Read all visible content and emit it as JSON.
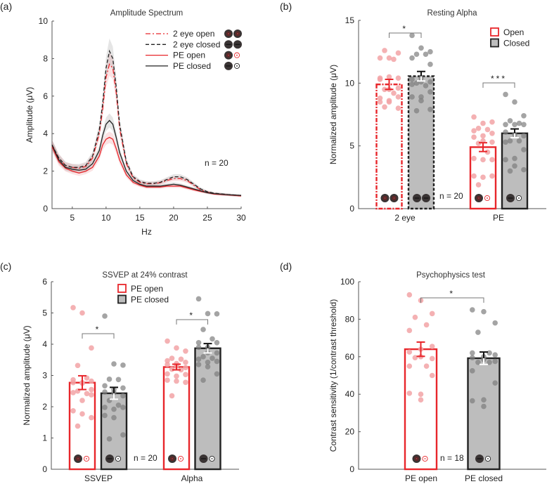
{
  "colors": {
    "open": "#e8262b",
    "open_dot": "#f2a3a6",
    "closed_fill": "#bdbdbd",
    "closed_dot": "#7d7d7d",
    "closed_edge": "#222222"
  },
  "chart_data": [
    {
      "panel": "(a)",
      "type": "line",
      "title": "Amplitude Spectrum",
      "xlabel": "Hz",
      "ylabel": "Amplitude (μV)",
      "xlim": [
        2,
        30
      ],
      "ylim": [
        0,
        10
      ],
      "xticks": [
        5,
        10,
        15,
        20,
        25,
        30
      ],
      "yticks": [
        0,
        2,
        4,
        6,
        8,
        10
      ],
      "annotation": "n = 20",
      "legend_position": "top-right",
      "x": [
        2,
        3,
        4,
        5,
        6,
        7,
        8,
        9,
        9.5,
        10,
        10.5,
        11,
        11.5,
        12,
        13,
        14,
        15,
        16,
        17,
        18,
        19,
        20,
        21,
        22,
        23,
        24,
        25,
        26,
        28,
        30
      ],
      "series": [
        {
          "name": "2 eye open",
          "style": "dash-dot",
          "color": "#e8262b",
          "icon": "both-eyes-open-icon",
          "values": [
            3.4,
            2.7,
            2.3,
            2.2,
            2.15,
            2.25,
            2.7,
            4.0,
            5.3,
            7.0,
            7.7,
            7.5,
            6.2,
            4.3,
            2.4,
            1.65,
            1.4,
            1.33,
            1.33,
            1.38,
            1.5,
            1.6,
            1.6,
            1.5,
            1.25,
            1.0,
            0.88,
            0.8,
            0.74,
            0.68
          ]
        },
        {
          "name": "2 eye closed",
          "style": "dashed",
          "color": "#222222",
          "icon": "both-eyes-closed-icon",
          "values": [
            3.4,
            2.7,
            2.3,
            2.2,
            2.2,
            2.3,
            2.8,
            4.2,
            5.6,
            7.5,
            8.4,
            8.0,
            6.5,
            4.5,
            2.5,
            1.7,
            1.45,
            1.35,
            1.35,
            1.4,
            1.55,
            1.7,
            1.7,
            1.55,
            1.3,
            1.05,
            0.9,
            0.82,
            0.75,
            0.7
          ]
        },
        {
          "name": "PE open",
          "style": "solid",
          "color": "#e8262b",
          "icon": "patched-eye-open-icon",
          "values": [
            3.3,
            2.5,
            2.15,
            2.0,
            1.9,
            2.0,
            2.2,
            2.8,
            3.4,
            3.7,
            3.8,
            3.7,
            3.2,
            2.6,
            1.8,
            1.4,
            1.25,
            1.15,
            1.15,
            1.15,
            1.2,
            1.2,
            1.2,
            1.1,
            1.0,
            0.92,
            0.85,
            0.78,
            0.73,
            0.68
          ]
        },
        {
          "name": "PE closed",
          "style": "solid",
          "color": "#222222",
          "icon": "patched-eye-closed-icon",
          "values": [
            3.4,
            2.6,
            2.2,
            2.1,
            2.05,
            2.1,
            2.4,
            3.1,
            3.9,
            4.5,
            4.7,
            4.5,
            3.8,
            3.0,
            2.0,
            1.5,
            1.3,
            1.2,
            1.2,
            1.2,
            1.25,
            1.3,
            1.25,
            1.15,
            1.05,
            0.95,
            0.85,
            0.8,
            0.74,
            0.7
          ]
        }
      ]
    },
    {
      "panel": "(b)",
      "type": "bar",
      "title": "Resting Alpha",
      "ylabel": "Normalized amplitude (μV)",
      "ylim": [
        0,
        15
      ],
      "yticks": [
        0,
        5,
        10,
        15
      ],
      "categories": [
        "2 eye",
        "PE"
      ],
      "legend": [
        "Open",
        "Closed"
      ],
      "legend_position": "top-right",
      "annotation": "n = 20",
      "bars": [
        {
          "group": "2 eye",
          "condition": "Open",
          "mean": 9.9,
          "sem": 0.4,
          "icon": "both-eyes-open-icon",
          "points": [
            12.0,
            12.0,
            12.4,
            12.6,
            11.9,
            10.3,
            10.4,
            10.5,
            10.4,
            9.5,
            9.6,
            9.5,
            9.2,
            8.8,
            8.9,
            8.5,
            8.5,
            8.6,
            8.0,
            8.1
          ]
        },
        {
          "group": "2 eye",
          "condition": "Closed",
          "mean": 10.55,
          "sem": 0.38,
          "icon": "both-eyes-closed-icon",
          "points": [
            13.8,
            12.8,
            12.5,
            12.3,
            12.3,
            12.0,
            11.5,
            10.4,
            10.3,
            10.1,
            10.1,
            10.0,
            9.8,
            9.9,
            9.3,
            8.9,
            8.9,
            8.6,
            7.9,
            7.8
          ]
        },
        {
          "group": "PE",
          "condition": "Open",
          "mean": 4.9,
          "sem": 0.35,
          "icon": "patched-eye-open-icon",
          "points": [
            7.3,
            6.8,
            6.9,
            6.4,
            6.3,
            6.2,
            6.0,
            5.8,
            5.7,
            5.4,
            5.3,
            5.2,
            4.5,
            4.0,
            3.9,
            3.9,
            2.6,
            2.5,
            2.6,
            1.9
          ]
        },
        {
          "group": "PE",
          "condition": "Closed",
          "mean": 6.0,
          "sem": 0.35,
          "icon": "patched-eye-closed-icon",
          "points": [
            9.1,
            8.5,
            7.4,
            7.0,
            6.8,
            6.7,
            6.7,
            6.7,
            6.1,
            5.9,
            5.8,
            5.4,
            5.4,
            5.3,
            4.7,
            4.0,
            3.9,
            3.4,
            3.1,
            3.0
          ]
        }
      ],
      "significance": [
        "*",
        "***"
      ]
    },
    {
      "panel": "(c)",
      "type": "bar",
      "title": "SSVEP at 24% contrast",
      "ylabel": "Normalized amplitude (μV)",
      "ylim": [
        0,
        6
      ],
      "yticks": [
        0,
        1,
        2,
        3,
        4,
        5,
        6
      ],
      "categories": [
        "SSVEP",
        "Alpha"
      ],
      "legend": [
        "PE open",
        "PE closed"
      ],
      "legend_position": "top-center",
      "annotation": "n = 20",
      "bars": [
        {
          "group": "SSVEP",
          "condition": "PE open",
          "mean": 2.77,
          "sem": 0.22,
          "icon": "patched-eye-open-icon",
          "points": [
            5.17,
            5.0,
            3.88,
            3.32,
            2.92,
            2.86,
            2.82,
            2.77,
            2.77,
            2.75,
            2.55,
            2.5,
            2.42,
            2.45,
            2.38,
            2.2,
            1.87,
            1.77,
            1.65,
            1.38
          ]
        },
        {
          "group": "SSVEP",
          "condition": "PE closed",
          "mean": 2.43,
          "sem": 0.19,
          "icon": "patched-eye-closed-icon",
          "points": [
            4.9,
            3.37,
            3.33,
            2.88,
            2.87,
            2.67,
            2.6,
            2.55,
            2.47,
            2.45,
            2.35,
            2.2,
            2.05,
            1.98,
            1.98,
            1.92,
            1.72,
            1.65,
            1.1,
            0.97
          ]
        },
        {
          "group": "Alpha",
          "condition": "PE open",
          "mean": 3.27,
          "sem": 0.09,
          "icon": "patched-eye-open-icon",
          "points": [
            4.1,
            3.88,
            3.78,
            3.55,
            3.52,
            3.47,
            3.42,
            3.38,
            3.35,
            3.3,
            3.25,
            3.2,
            3.18,
            3.05,
            3.03,
            2.98,
            2.85,
            2.82,
            2.78,
            2.35
          ]
        },
        {
          "group": "Alpha",
          "condition": "PE closed",
          "mean": 3.87,
          "sem": 0.15,
          "icon": "patched-eye-closed-icon",
          "points": [
            5.45,
            4.98,
            4.97,
            4.47,
            4.17,
            4.05,
            4.05,
            3.9,
            3.9,
            3.73,
            3.72,
            3.6,
            3.55,
            3.52,
            3.45,
            3.42,
            3.35,
            3.28,
            3.05,
            2.85
          ]
        }
      ],
      "significance": [
        "*",
        "*"
      ]
    },
    {
      "panel": "(d)",
      "type": "bar",
      "title": "Psychophysics test",
      "ylabel": "Contrast sensitivity (1/contrast threshold)",
      "ylim": [
        0,
        100
      ],
      "yticks": [
        0,
        20,
        40,
        60,
        80,
        100
      ],
      "categories": [
        "PE open",
        "PE closed"
      ],
      "annotation": "n = 18",
      "bars": [
        {
          "group": "PE open",
          "condition": "PE open",
          "mean": 64,
          "sem": 3.8,
          "icon": "patched-eye-open-icon",
          "points": [
            93,
            90,
            83,
            81,
            77,
            74,
            65.5,
            64,
            62.5,
            60,
            59,
            59.5,
            55,
            55,
            50,
            40,
            40.5,
            37
          ]
        },
        {
          "group": "PE closed",
          "condition": "PE closed",
          "mean": 59.2,
          "sem": 3.3,
          "icon": "patched-eye-closed-icon",
          "points": [
            85,
            84,
            78,
            73,
            62,
            62,
            61,
            60,
            59.5,
            58.5,
            57.5,
            57,
            57,
            52.5,
            46,
            37,
            36.5,
            33.5
          ]
        }
      ],
      "significance": [
        "*"
      ]
    }
  ]
}
